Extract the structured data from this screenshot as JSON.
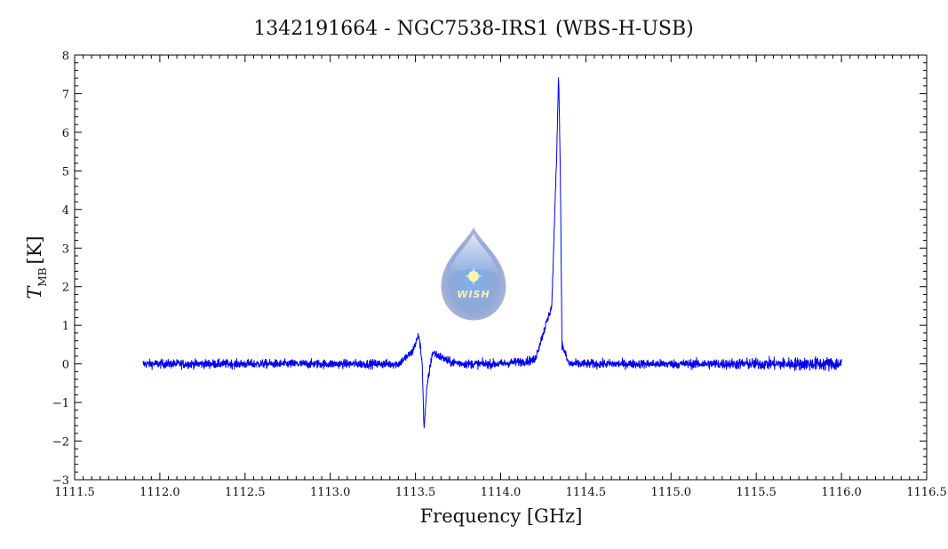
{
  "chart_data": {
    "type": "line",
    "title": "1342191664 - NGC7538-IRS1 (WBS-H-USB)",
    "xlabel": "Frequency [GHz]",
    "ylabel_main": "T",
    "ylabel_sub": "MB",
    "ylabel_unit": "[K]",
    "xlim": [
      1111.5,
      1116.5
    ],
    "ylim": [
      -3,
      8
    ],
    "xticks": [
      1111.5,
      1112.0,
      1112.5,
      1113.0,
      1113.5,
      1114.0,
      1114.5,
      1115.0,
      1115.5,
      1116.0,
      1116.5
    ],
    "xtick_labels": [
      "1111.5",
      "1112.0",
      "1112.5",
      "1113.0",
      "1113.5",
      "1114.0",
      "1114.5",
      "1115.0",
      "1115.5",
      "1116.0",
      "1116.5"
    ],
    "yticks": [
      -3,
      -2,
      -1,
      0,
      1,
      2,
      3,
      4,
      5,
      6,
      7,
      8
    ],
    "ytick_labels": [
      "−3",
      "−2",
      "−1",
      "0",
      "1",
      "2",
      "3",
      "4",
      "5",
      "6",
      "7",
      "8"
    ],
    "grid": false,
    "series": [
      {
        "color": "#0000ee",
        "x": [
          1111.9,
          1112.0,
          1112.5,
          1113.0,
          1113.4,
          1113.48,
          1113.52,
          1113.54,
          1113.55,
          1113.57,
          1113.6,
          1113.7,
          1113.8,
          1114.0,
          1114.2,
          1114.3,
          1114.33,
          1114.34,
          1114.35,
          1114.36,
          1114.4,
          1115.0,
          1115.5,
          1116.0
        ],
        "values": [
          0.0,
          0.0,
          0.0,
          0.0,
          0.0,
          0.3,
          0.75,
          0.0,
          -1.7,
          -0.5,
          0.3,
          0.05,
          0.0,
          0.0,
          0.1,
          1.5,
          5.6,
          7.6,
          5.0,
          0.5,
          0.0,
          0.0,
          0.0,
          0.0
        ]
      }
    ]
  },
  "logo": {
    "text": "WISH"
  }
}
